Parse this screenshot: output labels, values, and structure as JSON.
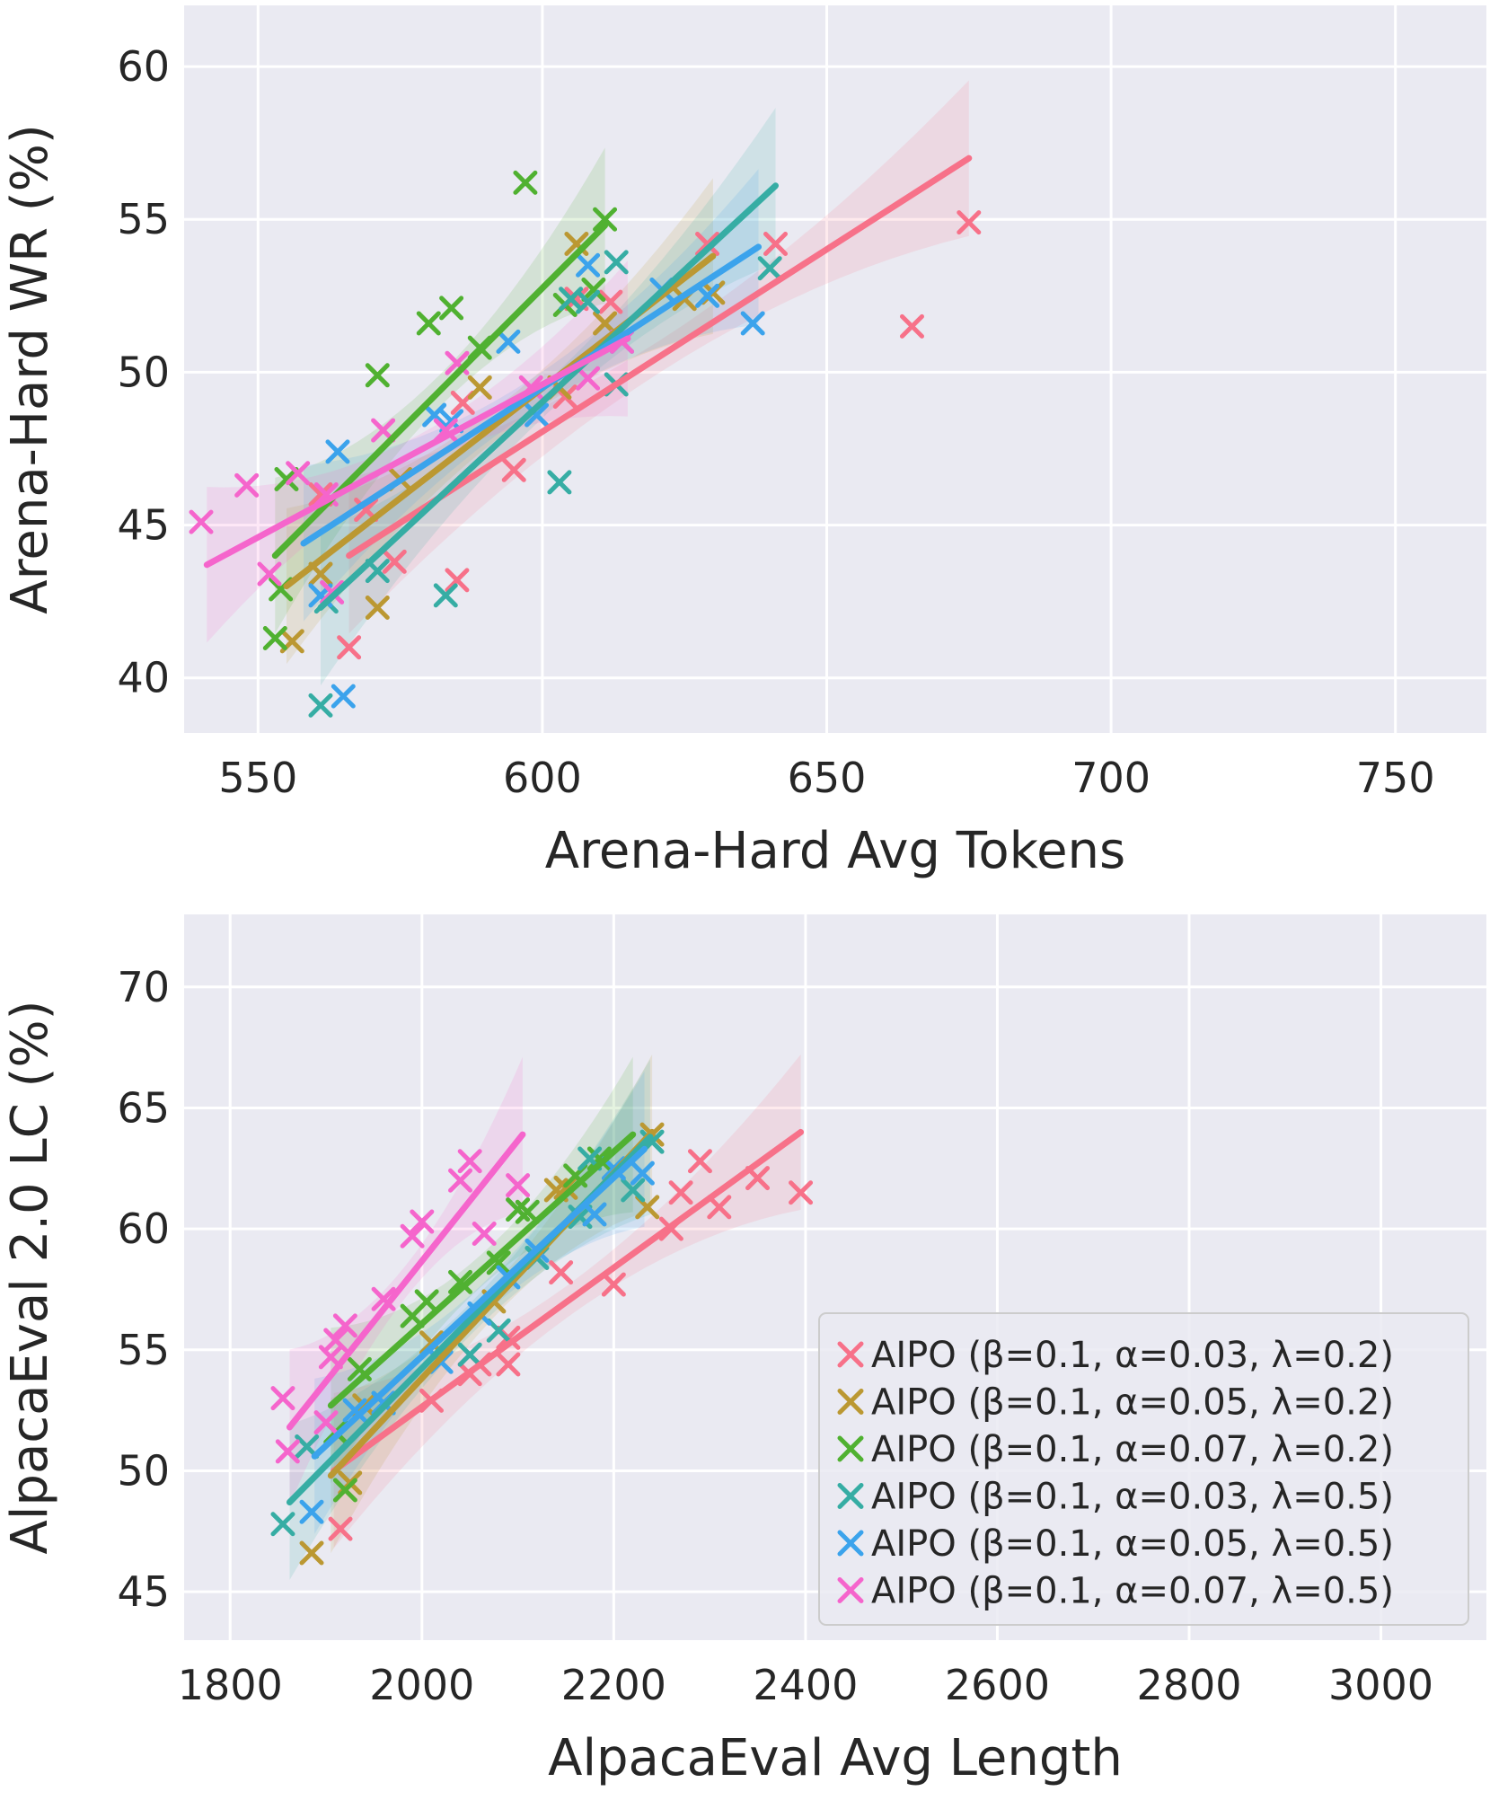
{
  "chart_data": [
    {
      "type": "scatter",
      "title": "",
      "xlabel": "Arena-Hard Avg Tokens",
      "ylabel": "Arena-Hard WR (%)",
      "xlim": [
        537,
        766
      ],
      "ylim": [
        38.2,
        62.0
      ],
      "xticks": [
        550,
        600,
        650,
        700,
        750
      ],
      "yticks": [
        40,
        45,
        50,
        55,
        60
      ],
      "grid": true,
      "series": [
        {
          "name": "AIPO (β=0.1, α=0.03, λ=0.2)",
          "color": "#f77189",
          "points": [
            [
              675,
              54.9
            ],
            [
              665,
              51.5
            ],
            [
              641,
              54.2
            ],
            [
              629,
              54.2
            ],
            [
              612,
              52.3
            ],
            [
              606,
              52.4
            ],
            [
              604,
              49.2
            ],
            [
              595,
              46.8
            ],
            [
              586,
              49.0
            ],
            [
              585,
              43.2
            ],
            [
              574,
              43.8
            ],
            [
              566,
              41.0
            ],
            [
              569,
              45.5
            ],
            [
              561,
              46.0
            ]
          ],
          "fit": [
            [
              566,
              44.0
            ],
            [
              675,
              57.0
            ]
          ]
        },
        {
          "name": "AIPO (β=0.1, α=0.05, λ=0.2)",
          "color": "#bb9832",
          "points": [
            [
              556,
              41.2
            ],
            [
              571,
              42.3
            ],
            [
              589,
              49.5
            ],
            [
              606,
              54.2
            ],
            [
              625,
              52.4
            ],
            [
              630,
              52.6
            ],
            [
              611,
              51.6
            ],
            [
              603,
              49.5
            ],
            [
              575,
              46.5
            ],
            [
              561,
              43.4
            ]
          ],
          "fit": [
            [
              555,
              43.0
            ],
            [
              630,
              53.8
            ]
          ]
        },
        {
          "name": "AIPO (β=0.1, α=0.07, λ=0.2)",
          "color": "#50b131",
          "points": [
            [
              553,
              41.3
            ],
            [
              554,
              42.9
            ],
            [
              555,
              46.5
            ],
            [
              571,
              49.9
            ],
            [
              580,
              51.6
            ],
            [
              584,
              52.1
            ],
            [
              589,
              50.8
            ],
            [
              597,
              56.2
            ],
            [
              611,
              55.0
            ],
            [
              604,
              52.2
            ],
            [
              609,
              52.7
            ]
          ],
          "fit": [
            [
              553,
              44.0
            ],
            [
              611,
              54.8
            ]
          ]
        },
        {
          "name": "AIPO (β=0.1, α=0.03, λ=0.5)",
          "color": "#36ada4",
          "points": [
            [
              561,
              39.1
            ],
            [
              562,
              42.5
            ],
            [
              571,
              43.5
            ],
            [
              583,
              42.7
            ],
            [
              603,
              46.4
            ],
            [
              613,
              49.6
            ],
            [
              613,
              53.6
            ],
            [
              605,
              52.4
            ],
            [
              608,
              52.3
            ],
            [
              640,
              53.4
            ]
          ],
          "fit": [
            [
              561,
              42.3
            ],
            [
              641,
              56.1
            ]
          ]
        },
        {
          "name": "AIPO (β=0.1, α=0.05, λ=0.5)",
          "color": "#3ba3ec",
          "points": [
            [
              565,
              39.4
            ],
            [
              561,
              42.7
            ],
            [
              564,
              47.4
            ],
            [
              581,
              48.6
            ],
            [
              594,
              51.0
            ],
            [
              608,
              53.5
            ],
            [
              637,
              51.6
            ],
            [
              629,
              52.5
            ],
            [
              621,
              52.7
            ],
            [
              614,
              51.0
            ],
            [
              599,
              48.6
            ],
            [
              584,
              48.4
            ]
          ],
          "fit": [
            [
              558,
              44.4
            ],
            [
              638,
              54.1
            ]
          ]
        },
        {
          "name": "AIPO (β=0.1, α=0.07, λ=0.5)",
          "color": "#f565cc",
          "points": [
            [
              540,
              45.1
            ],
            [
              548,
              46.3
            ],
            [
              557,
              46.7
            ],
            [
              562,
              46.0
            ],
            [
              563,
              42.8
            ],
            [
              552,
              43.4
            ],
            [
              572,
              48.1
            ],
            [
              583,
              48.1
            ],
            [
              585,
              50.3
            ],
            [
              598,
              49.5
            ],
            [
              608,
              49.8
            ],
            [
              614,
              51.0
            ]
          ],
          "fit": [
            [
              541,
              43.7
            ],
            [
              615,
              51.1
            ]
          ]
        }
      ]
    },
    {
      "type": "scatter",
      "title": "",
      "xlabel": "AlpacaEval Avg Length",
      "ylabel": "AlpacaEval 2.0 LC (%)",
      "xlim": [
        1752,
        3110
      ],
      "ylim": [
        43.0,
        73.0
      ],
      "xticks": [
        1800,
        2000,
        2200,
        2400,
        2600,
        2800,
        3000
      ],
      "yticks": [
        45,
        50,
        55,
        60,
        65,
        70
      ],
      "grid": true,
      "legend": {
        "position": "lower-right",
        "entries": [
          "AIPO (β=0.1, α=0.03, λ=0.2)",
          "AIPO (β=0.1, α=0.05, λ=0.2)",
          "AIPO (β=0.1, α=0.07, λ=0.2)",
          "AIPO (β=0.1, α=0.03, λ=0.5)",
          "AIPO (β=0.1, α=0.05, λ=0.5)",
          "AIPO (β=0.1, α=0.07, λ=0.5)"
        ]
      },
      "series": [
        {
          "name": "AIPO (β=0.1, α=0.03, λ=0.2)",
          "color": "#f77189",
          "points": [
            [
              1915,
              47.6
            ],
            [
              2010,
              52.9
            ],
            [
              2050,
              54.0
            ],
            [
              2060,
              54.4
            ],
            [
              2090,
              54.4
            ],
            [
              2090,
              55.5
            ],
            [
              2145,
              58.2
            ],
            [
              2200,
              57.7
            ],
            [
              2260,
              60.0
            ],
            [
              2270,
              61.5
            ],
            [
              2290,
              62.8
            ],
            [
              2310,
              60.9
            ],
            [
              2350,
              62.1
            ],
            [
              2395,
              61.5
            ]
          ],
          "fit": [
            [
              1908,
              50.0
            ],
            [
              2395,
              64.0
            ]
          ]
        },
        {
          "name": "AIPO (β=0.1, α=0.05, λ=0.2)",
          "color": "#bb9832",
          "points": [
            [
              1885,
              46.6
            ],
            [
              1925,
              49.5
            ],
            [
              1940,
              52.7
            ],
            [
              2010,
              55.3
            ],
            [
              2075,
              57.0
            ],
            [
              2140,
              61.6
            ],
            [
              2150,
              61.7
            ],
            [
              2235,
              60.9
            ],
            [
              2240,
              63.9
            ]
          ],
          "fit": [
            [
              1905,
              49.8
            ],
            [
              2240,
              64.0
            ]
          ]
        },
        {
          "name": "AIPO (β=0.1, α=0.07, λ=0.2)",
          "color": "#50b131",
          "points": [
            [
              1910,
              51.6
            ],
            [
              1920,
              49.2
            ],
            [
              1935,
              54.2
            ],
            [
              1990,
              56.4
            ],
            [
              2005,
              57.0
            ],
            [
              2040,
              57.8
            ],
            [
              2080,
              58.6
            ],
            [
              2100,
              60.8
            ],
            [
              2110,
              60.7
            ],
            [
              2160,
              62.2
            ],
            [
              2185,
              62.9
            ]
          ],
          "fit": [
            [
              1905,
              52.7
            ],
            [
              2220,
              63.9
            ]
          ]
        },
        {
          "name": "AIPO (β=0.1, α=0.03, λ=0.5)",
          "color": "#36ada4",
          "points": [
            [
              1855,
              47.8
            ],
            [
              1880,
              51.0
            ],
            [
              1960,
              52.8
            ],
            [
              2050,
              54.8
            ],
            [
              2080,
              55.8
            ],
            [
              2120,
              58.8
            ],
            [
              2165,
              60.5
            ],
            [
              2175,
              62.9
            ],
            [
              2240,
              63.6
            ],
            [
              2220,
              61.6
            ]
          ],
          "fit": [
            [
              1862,
              48.7
            ],
            [
              2238,
              63.8
            ]
          ]
        },
        {
          "name": "AIPO (β=0.1, α=0.05, λ=0.5)",
          "color": "#3ba3ec",
          "points": [
            [
              1885,
              48.3
            ],
            [
              1930,
              52.5
            ],
            [
              1960,
              52.8
            ],
            [
              2020,
              54.5
            ],
            [
              2060,
              56.5
            ],
            [
              2090,
              58.0
            ],
            [
              2120,
              59.1
            ],
            [
              2180,
              60.6
            ],
            [
              2200,
              62.5
            ],
            [
              2230,
              62.3
            ]
          ],
          "fit": [
            [
              1888,
              50.6
            ],
            [
              2232,
              63.3
            ]
          ]
        },
        {
          "name": "AIPO (β=0.1, α=0.07, λ=0.5)",
          "color": "#f565cc",
          "points": [
            [
              1855,
              53.0
            ],
            [
              1860,
              50.8
            ],
            [
              1900,
              52.0
            ],
            [
              1905,
              54.7
            ],
            [
              1910,
              55.4
            ],
            [
              1920,
              56.0
            ],
            [
              1960,
              57.1
            ],
            [
              1990,
              59.7
            ],
            [
              2000,
              60.3
            ],
            [
              2040,
              62.0
            ],
            [
              2050,
              62.8
            ],
            [
              2065,
              59.8
            ],
            [
              2100,
              61.8
            ]
          ],
          "fit": [
            [
              1862,
              51.8
            ],
            [
              2105,
              63.9
            ]
          ]
        }
      ]
    }
  ]
}
